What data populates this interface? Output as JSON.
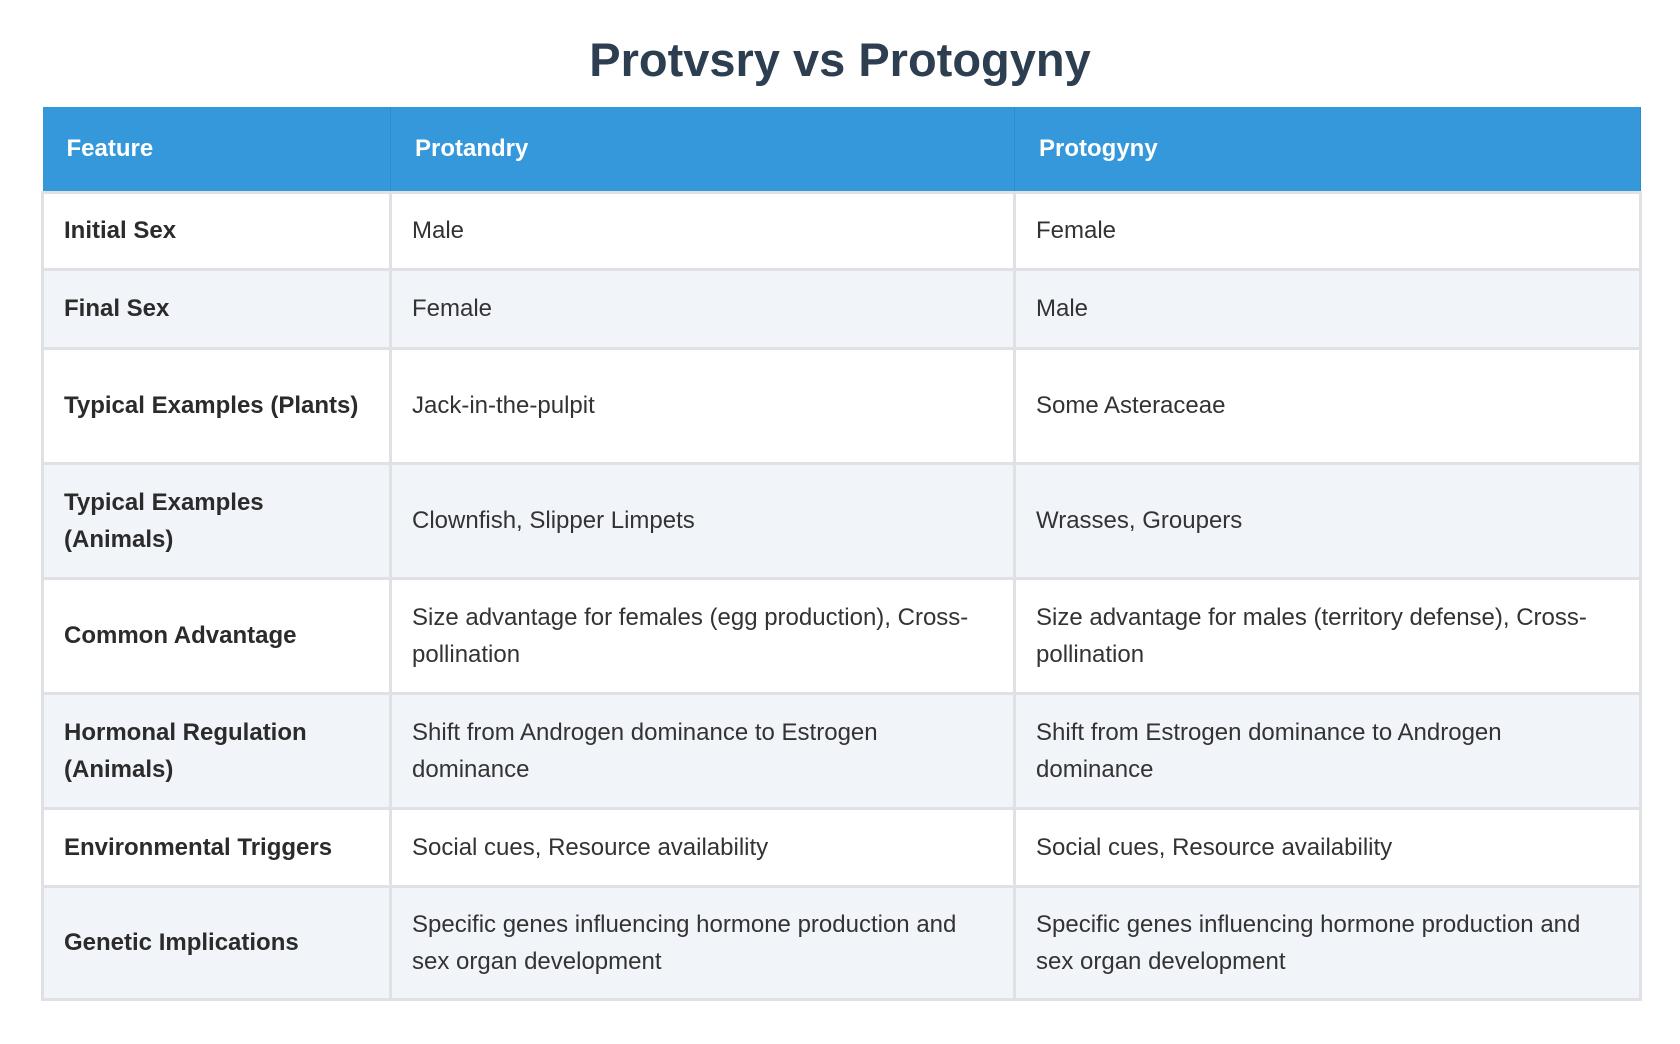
{
  "title": "Protvsry vs Protogyny",
  "table": {
    "headers": [
      "Feature",
      "Protandry",
      "Protogyny"
    ],
    "rows": [
      [
        "Initial Sex",
        "Male",
        "Female"
      ],
      [
        "Final Sex",
        "Female",
        "Male"
      ],
      [
        "Typical Examples (Plants)",
        "Jack-in-the-pulpit",
        "Some Asteraceae"
      ],
      [
        "Typical Examples (Animals)",
        "Clownfish, Slipper Limpets",
        "Wrasses, Groupers"
      ],
      [
        "Common Advantage",
        "Size advantage for females (egg production), Cross-pollination",
        "Size advantage for males (territory defense), Cross-pollination"
      ],
      [
        "Hormonal Regulation (Animals)",
        "Shift from Androgen dominance to Estrogen dominance",
        "Shift from Estrogen dominance to Androgen dominance"
      ],
      [
        "Environmental Triggers",
        "Social cues, Resource availability",
        "Social cues, Resource availability"
      ],
      [
        "Genetic Implications",
        "Specific genes influencing hormone production and sex organ development",
        "Specific genes influencing hormone production and sex organ development"
      ]
    ]
  }
}
